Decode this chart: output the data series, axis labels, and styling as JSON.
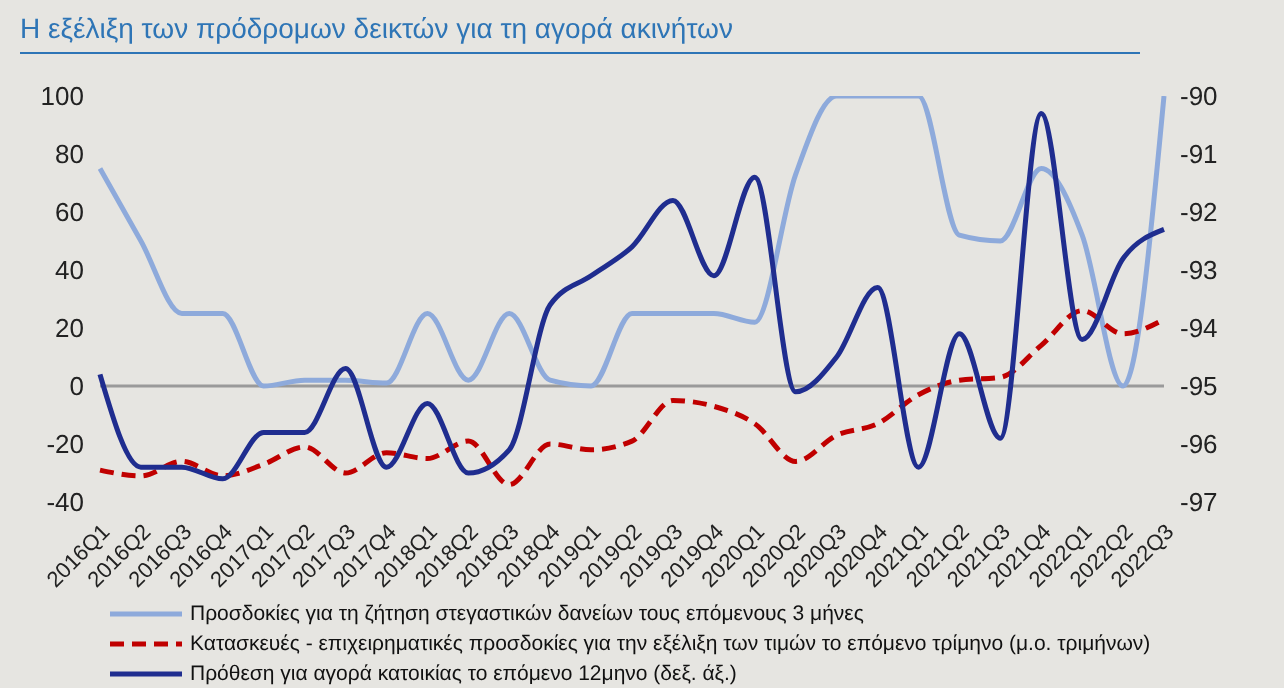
{
  "chart_data": {
    "type": "line",
    "title": "Η εξέλιξη των πρόδρομων δεικτών για τη αγορά ακινήτων",
    "categories": [
      "2016Q1",
      "2016Q2",
      "2016Q3",
      "2016Q4",
      "2017Q1",
      "2017Q2",
      "2017Q3",
      "2017Q4",
      "2018Q1",
      "2018Q2",
      "2018Q3",
      "2018Q4",
      "2019Q1",
      "2019Q2",
      "2019Q3",
      "2019Q4",
      "2020Q1",
      "2020Q2",
      "2020Q3",
      "2020Q4",
      "2021Q1",
      "2021Q2",
      "2021Q3",
      "2021Q4",
      "2022Q1",
      "2022Q2",
      "2022Q3"
    ],
    "series": [
      {
        "name": "Προσδοκίες για τη ζήτηση στεγαστικών δανείων τους επόμενους 3 μήνες",
        "color": "#8eaadb",
        "line_style": "solid",
        "values": [
          75,
          50,
          25,
          25,
          0,
          2,
          2,
          1,
          25,
          2,
          25,
          2,
          0,
          25,
          25,
          25,
          22,
          73,
          100,
          100,
          100,
          52,
          50,
          75,
          52,
          0,
          100
        ]
      },
      {
        "name": "Κατασκευές - επιχειρηματικές προσδοκίες για την εξέλιξη των τιμών το επόμενο τρίμηνο (μ.ο. τριμήνων)",
        "color": "#c00000",
        "line_style": "dashed",
        "values": [
          -29,
          -31,
          -26,
          -31,
          -27,
          -21,
          -30,
          -23,
          -25,
          -19,
          -34,
          -20,
          -22,
          -19,
          -5,
          -7,
          -13,
          -26,
          -17,
          -13,
          -3,
          2,
          3,
          14,
          26,
          18,
          23
        ]
      },
      {
        "name": "Πρόθεση για αγορά κατοικίας το επόμενο 12μηνο (δεξ. άξ.)",
        "color": "#1f2d8f",
        "line_style": "solid",
        "axis": "y2",
        "values": [
          -94.8,
          -96.4,
          -96.4,
          -96.6,
          -95.8,
          -95.8,
          -94.7,
          -96.4,
          -95.3,
          -96.5,
          -96.1,
          -93.6,
          -93.1,
          -92.6,
          -91.8,
          -93.1,
          -91.4,
          -95.1,
          -94.5,
          -93.3,
          -96.4,
          -94.1,
          -95.9,
          -90.3,
          -94.2,
          -92.8,
          -92.3
        ]
      }
    ],
    "ylim": [
      -40,
      100
    ],
    "yticks": [
      -40,
      -20,
      0,
      20,
      40,
      60,
      80,
      100
    ],
    "y2lim": [
      -97,
      -90
    ],
    "y2ticks": [
      -97,
      -96,
      -95,
      -94,
      -93,
      -92,
      -91,
      -90
    ],
    "ref_lines": [
      {
        "axis": "y",
        "value": 0,
        "color": "#9a9a9a"
      }
    ],
    "grid": false,
    "legend": "bottom",
    "marker": "none"
  }
}
